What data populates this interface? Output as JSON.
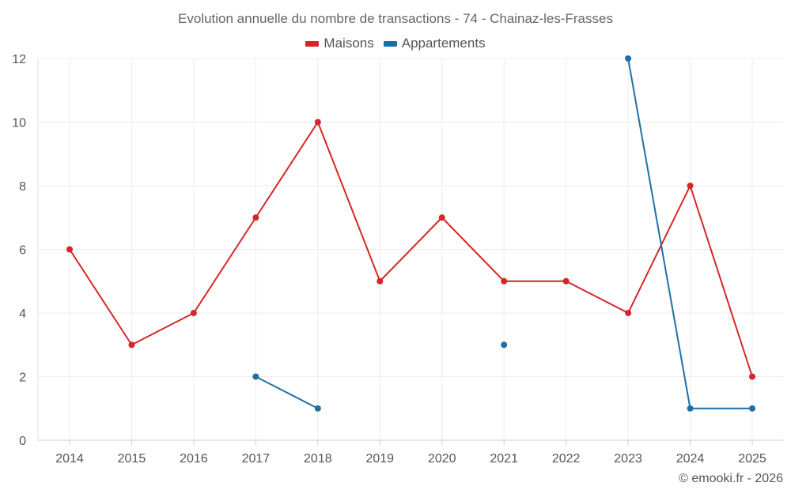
{
  "chart_data": {
    "type": "line",
    "title": "Evolution annuelle du nombre de transactions - 74 - Chainaz-les-Frasses",
    "categories": [
      "2014",
      "2015",
      "2016",
      "2017",
      "2018",
      "2019",
      "2020",
      "2021",
      "2022",
      "2023",
      "2024",
      "2025"
    ],
    "series": [
      {
        "name": "Maisons",
        "color": "#d62728",
        "values": [
          6,
          3,
          4,
          7,
          10,
          5,
          7,
          5,
          5,
          4,
          8,
          2
        ]
      },
      {
        "name": "Appartements",
        "color": "#1f6fa5",
        "values": [
          null,
          null,
          null,
          2,
          1,
          null,
          null,
          3,
          null,
          12,
          1,
          1
        ]
      }
    ],
    "ylim": [
      0,
      12
    ],
    "yticks": [
      0,
      2,
      4,
      6,
      8,
      10,
      12
    ],
    "grid": true,
    "legend_position": "top-center",
    "xlabel": "",
    "ylabel": ""
  },
  "credit": "© emooki.fr - 2026"
}
